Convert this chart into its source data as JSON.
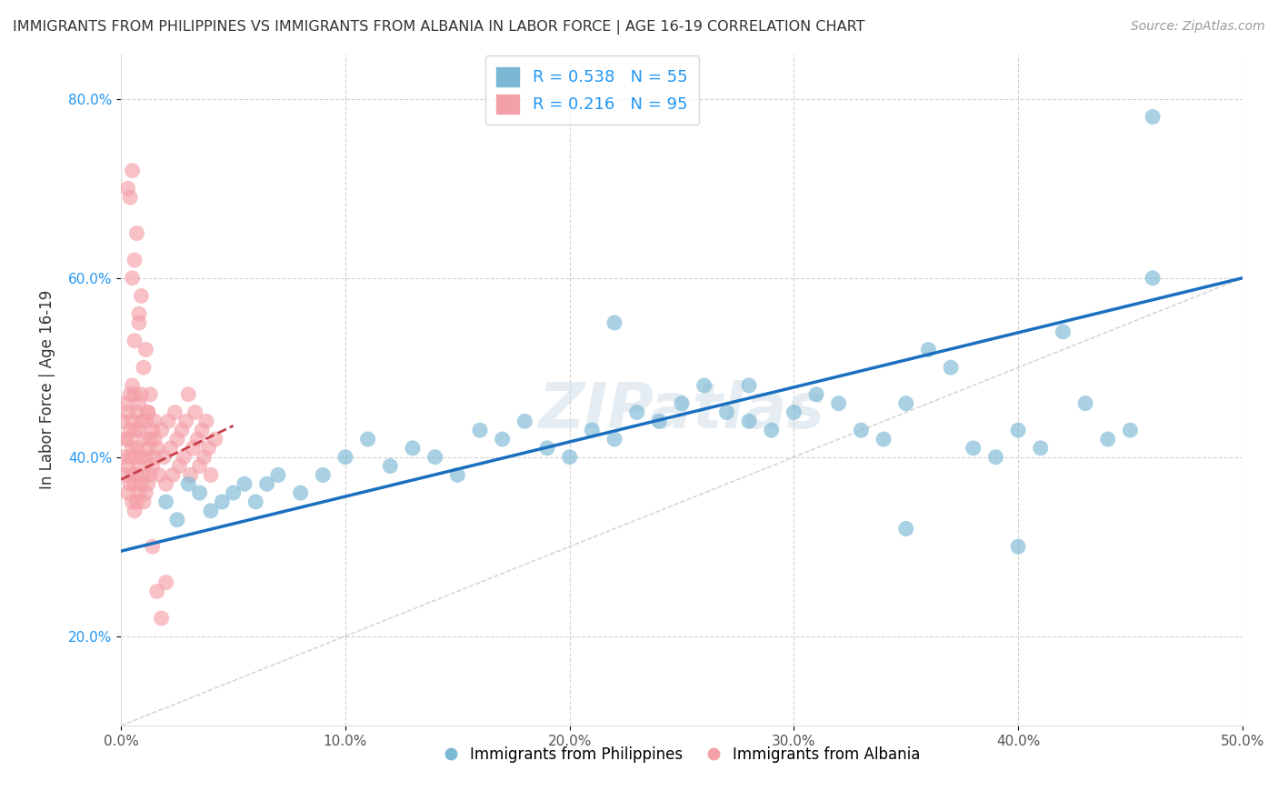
{
  "title": "IMMIGRANTS FROM PHILIPPINES VS IMMIGRANTS FROM ALBANIA IN LABOR FORCE | AGE 16-19 CORRELATION CHART",
  "source": "Source: ZipAtlas.com",
  "ylabel": "In Labor Force | Age 16-19",
  "xlim": [
    0.0,
    0.5
  ],
  "ylim": [
    0.1,
    0.85
  ],
  "xticks": [
    0.0,
    0.1,
    0.2,
    0.3,
    0.4,
    0.5
  ],
  "yticks": [
    0.2,
    0.4,
    0.6,
    0.8
  ],
  "xticklabels": [
    "0.0%",
    "10.0%",
    "20.0%",
    "30.0%",
    "40.0%",
    "50.0%"
  ],
  "yticklabels": [
    "20.0%",
    "40.0%",
    "60.0%",
    "80.0%"
  ],
  "philippines_color": "#7bb8d4",
  "albania_color": "#f4a0a8",
  "philippines_line_color": "#1a6fbf",
  "albania_line_color": "#c8404a",
  "philippines_R": "0.538",
  "philippines_N": "55",
  "albania_R": "0.216",
  "albania_N": "95",
  "watermark": "ZIPatlas",
  "philippines_scatter_x": [
    0.02,
    0.025,
    0.03,
    0.035,
    0.04,
    0.045,
    0.05,
    0.055,
    0.06,
    0.065,
    0.07,
    0.08,
    0.09,
    0.1,
    0.11,
    0.12,
    0.13,
    0.14,
    0.15,
    0.16,
    0.17,
    0.18,
    0.19,
    0.2,
    0.21,
    0.22,
    0.23,
    0.24,
    0.25,
    0.26,
    0.27,
    0.28,
    0.29,
    0.3,
    0.31,
    0.32,
    0.33,
    0.34,
    0.35,
    0.36,
    0.37,
    0.38,
    0.39,
    0.4,
    0.41,
    0.42,
    0.43,
    0.44,
    0.45,
    0.46,
    0.22,
    0.28,
    0.35,
    0.4,
    0.46
  ],
  "philippines_scatter_y": [
    0.35,
    0.33,
    0.37,
    0.36,
    0.34,
    0.35,
    0.36,
    0.37,
    0.35,
    0.37,
    0.38,
    0.36,
    0.38,
    0.4,
    0.42,
    0.39,
    0.41,
    0.4,
    0.38,
    0.43,
    0.42,
    0.44,
    0.41,
    0.4,
    0.43,
    0.42,
    0.45,
    0.44,
    0.46,
    0.48,
    0.45,
    0.44,
    0.43,
    0.45,
    0.47,
    0.46,
    0.43,
    0.42,
    0.46,
    0.52,
    0.5,
    0.41,
    0.4,
    0.43,
    0.41,
    0.54,
    0.46,
    0.42,
    0.43,
    0.6,
    0.55,
    0.48,
    0.32,
    0.3,
    0.78
  ],
  "albania_scatter_x": [
    0.001,
    0.001,
    0.002,
    0.002,
    0.002,
    0.003,
    0.003,
    0.003,
    0.003,
    0.004,
    0.004,
    0.004,
    0.004,
    0.005,
    0.005,
    0.005,
    0.005,
    0.005,
    0.006,
    0.006,
    0.006,
    0.006,
    0.006,
    0.007,
    0.007,
    0.007,
    0.007,
    0.008,
    0.008,
    0.008,
    0.008,
    0.009,
    0.009,
    0.009,
    0.009,
    0.01,
    0.01,
    0.01,
    0.011,
    0.011,
    0.011,
    0.012,
    0.012,
    0.012,
    0.013,
    0.013,
    0.014,
    0.014,
    0.015,
    0.015,
    0.016,
    0.017,
    0.018,
    0.019,
    0.02,
    0.021,
    0.022,
    0.023,
    0.024,
    0.025,
    0.026,
    0.027,
    0.028,
    0.029,
    0.03,
    0.031,
    0.032,
    0.033,
    0.034,
    0.035,
    0.036,
    0.037,
    0.038,
    0.039,
    0.04,
    0.042,
    0.004,
    0.006,
    0.008,
    0.01,
    0.012,
    0.014,
    0.016,
    0.018,
    0.02,
    0.005,
    0.007,
    0.009,
    0.011,
    0.013,
    0.015,
    0.003,
    0.005,
    0.006,
    0.008
  ],
  "albania_scatter_y": [
    0.4,
    0.44,
    0.38,
    0.42,
    0.46,
    0.36,
    0.39,
    0.42,
    0.45,
    0.37,
    0.4,
    0.43,
    0.47,
    0.35,
    0.38,
    0.41,
    0.44,
    0.48,
    0.34,
    0.37,
    0.4,
    0.43,
    0.47,
    0.35,
    0.38,
    0.41,
    0.45,
    0.36,
    0.39,
    0.43,
    0.46,
    0.37,
    0.4,
    0.44,
    0.47,
    0.35,
    0.38,
    0.42,
    0.36,
    0.4,
    0.44,
    0.37,
    0.41,
    0.45,
    0.38,
    0.42,
    0.39,
    0.43,
    0.4,
    0.44,
    0.41,
    0.38,
    0.43,
    0.4,
    0.37,
    0.44,
    0.41,
    0.38,
    0.45,
    0.42,
    0.39,
    0.43,
    0.4,
    0.44,
    0.47,
    0.38,
    0.41,
    0.45,
    0.42,
    0.39,
    0.43,
    0.4,
    0.44,
    0.41,
    0.38,
    0.42,
    0.69,
    0.62,
    0.55,
    0.5,
    0.45,
    0.3,
    0.25,
    0.22,
    0.26,
    0.72,
    0.65,
    0.58,
    0.52,
    0.47,
    0.42,
    0.7,
    0.6,
    0.53,
    0.56
  ],
  "diag_line_color": "#bbbbbb",
  "ref_line_x": [
    0.0,
    0.5
  ],
  "ref_line_y": [
    0.1,
    0.6
  ]
}
